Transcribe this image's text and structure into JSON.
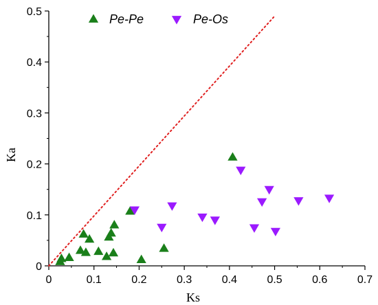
{
  "chart_data": {
    "type": "scatter",
    "xlabel": "Ks",
    "ylabel": "Ka",
    "xlim": [
      0,
      0.7
    ],
    "ylim": [
      0,
      0.5
    ],
    "xticks": [
      "0",
      "0.1",
      "0.2",
      "0.3",
      "0.4",
      "0.5",
      "0.6",
      "0.7"
    ],
    "yticks": [
      "0",
      "0.1",
      "0.2",
      "0.3",
      "0.4",
      "0.5"
    ],
    "grid": false,
    "legend_position": "top",
    "reference_line": {
      "style": "dotted",
      "color": "#e02020",
      "points": [
        [
          0,
          0
        ],
        [
          0.5,
          0.49
        ]
      ]
    },
    "series": [
      {
        "name": "Pe-Pe",
        "marker": "triangle-up",
        "color": "#1a7f1a",
        "points": [
          [
            0.025,
            0.008
          ],
          [
            0.028,
            0.014
          ],
          [
            0.045,
            0.016
          ],
          [
            0.07,
            0.03
          ],
          [
            0.077,
            0.062
          ],
          [
            0.082,
            0.026
          ],
          [
            0.09,
            0.052
          ],
          [
            0.11,
            0.028
          ],
          [
            0.128,
            0.018
          ],
          [
            0.133,
            0.056
          ],
          [
            0.138,
            0.064
          ],
          [
            0.143,
            0.025
          ],
          [
            0.145,
            0.08
          ],
          [
            0.18,
            0.107
          ],
          [
            0.205,
            0.012
          ],
          [
            0.255,
            0.034
          ],
          [
            0.407,
            0.213
          ]
        ]
      },
      {
        "name": "Pe-Os",
        "marker": "triangle-down",
        "color": "#9b1aff",
        "points": [
          [
            0.19,
            0.11
          ],
          [
            0.25,
            0.076
          ],
          [
            0.273,
            0.118
          ],
          [
            0.34,
            0.096
          ],
          [
            0.368,
            0.09
          ],
          [
            0.425,
            0.188
          ],
          [
            0.455,
            0.075
          ],
          [
            0.472,
            0.126
          ],
          [
            0.488,
            0.15
          ],
          [
            0.502,
            0.068
          ],
          [
            0.553,
            0.128
          ],
          [
            0.621,
            0.133
          ]
        ]
      }
    ]
  }
}
